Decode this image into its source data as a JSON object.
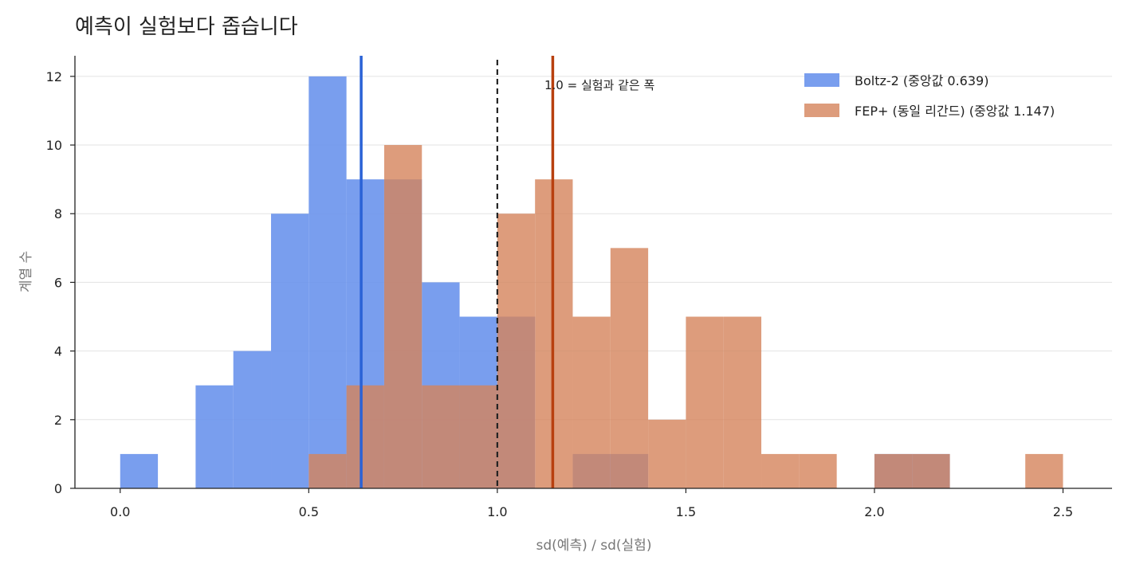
{
  "chart_data": {
    "type": "histogram",
    "title": "예측이 실험보다 좁습니다",
    "xlabel": "sd(예측) / sd(실험)",
    "ylabel": "계열 수",
    "xlim": [
      -0.12,
      2.63
    ],
    "ylim": [
      0,
      12.6
    ],
    "xticks": [
      0.0,
      0.5,
      1.0,
      1.5,
      2.0,
      2.5
    ],
    "xtick_labels": [
      "0.0",
      "0.5",
      "1.0",
      "1.5",
      "2.0",
      "2.5"
    ],
    "yticks": [
      0,
      2,
      4,
      6,
      8,
      10,
      12
    ],
    "ytick_labels": [
      "0",
      "2",
      "4",
      "6",
      "8",
      "10",
      "12"
    ],
    "grid": "horizontal",
    "legend_position": "top-right",
    "bin_width": 0.1,
    "series": [
      {
        "name": "Boltz-2  (중앙값 0.639)",
        "color": "#6a94ec",
        "median": 0.639,
        "median_color": "#2a62d6",
        "bins": [
          {
            "x0": 0.0,
            "count": 1
          },
          {
            "x0": 0.1,
            "count": 0
          },
          {
            "x0": 0.2,
            "count": 3
          },
          {
            "x0": 0.3,
            "count": 4
          },
          {
            "x0": 0.4,
            "count": 8
          },
          {
            "x0": 0.5,
            "count": 12
          },
          {
            "x0": 0.6,
            "count": 9
          },
          {
            "x0": 0.7,
            "count": 9
          },
          {
            "x0": 0.8,
            "count": 6
          },
          {
            "x0": 0.9,
            "count": 5
          },
          {
            "x0": 1.0,
            "count": 5
          },
          {
            "x0": 1.1,
            "count": 0
          },
          {
            "x0": 1.2,
            "count": 1
          },
          {
            "x0": 1.3,
            "count": 1
          },
          {
            "x0": 1.4,
            "count": 0
          },
          {
            "x0": 1.5,
            "count": 0
          },
          {
            "x0": 1.6,
            "count": 0
          },
          {
            "x0": 1.7,
            "count": 0
          },
          {
            "x0": 1.8,
            "count": 0
          },
          {
            "x0": 1.9,
            "count": 0
          },
          {
            "x0": 2.0,
            "count": 1
          },
          {
            "x0": 2.1,
            "count": 1
          }
        ]
      },
      {
        "name": "FEP+ (동일 리간드)  (중앙값 1.147)",
        "color": "#d5835b",
        "median": 1.147,
        "median_color": "#b8400f",
        "bins": [
          {
            "x0": 0.5,
            "count": 1
          },
          {
            "x0": 0.6,
            "count": 3
          },
          {
            "x0": 0.7,
            "count": 10
          },
          {
            "x0": 0.8,
            "count": 3
          },
          {
            "x0": 0.9,
            "count": 3
          },
          {
            "x0": 1.0,
            "count": 8
          },
          {
            "x0": 1.1,
            "count": 9
          },
          {
            "x0": 1.2,
            "count": 5
          },
          {
            "x0": 1.3,
            "count": 7
          },
          {
            "x0": 1.4,
            "count": 2
          },
          {
            "x0": 1.5,
            "count": 5
          },
          {
            "x0": 1.6,
            "count": 5
          },
          {
            "x0": 1.7,
            "count": 1
          },
          {
            "x0": 1.8,
            "count": 1
          },
          {
            "x0": 1.9,
            "count": 0
          },
          {
            "x0": 2.0,
            "count": 1
          },
          {
            "x0": 2.1,
            "count": 1
          },
          {
            "x0": 2.2,
            "count": 0
          },
          {
            "x0": 2.3,
            "count": 0
          },
          {
            "x0": 2.4,
            "count": 1
          }
        ]
      }
    ],
    "reference_line": {
      "x": 1.0,
      "style": "dashed",
      "color": "#222222",
      "label": "1.0 = 실험과 같은 폭"
    }
  }
}
